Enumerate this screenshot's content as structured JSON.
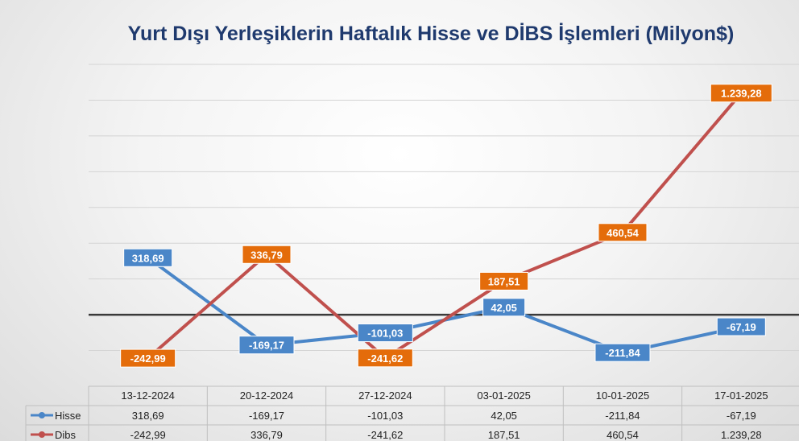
{
  "chart_data": {
    "type": "line",
    "title": "Yurt Dışı Yerleşiklerin Haftalık Hisse ve DİBS İşlemleri (Milyon$)",
    "categories": [
      "13-12-2024",
      "20-12-2024",
      "27-12-2024",
      "03-01-2025",
      "10-01-2025",
      "17-01-2025"
    ],
    "series": [
      {
        "name": "Hisse",
        "color": "#4a86c8",
        "label_color": "#4a86c8",
        "values": [
          318.69,
          -169.17,
          -101.03,
          42.05,
          -211.84,
          -67.19
        ],
        "labels": [
          "318,69",
          "-169,17",
          "-101,03",
          "42,05",
          "-211,84",
          "-67,19"
        ]
      },
      {
        "name": "Dibs",
        "color": "#c0504d",
        "label_color": "#e46c0a",
        "values": [
          -242.99,
          336.79,
          -241.62,
          187.51,
          460.54,
          1239.28
        ],
        "labels": [
          "-242,99",
          "336,79",
          "-241,62",
          "187,51",
          "460,54",
          "1.239,28"
        ]
      }
    ],
    "ylim": [
      -400,
      1400
    ],
    "grid": true,
    "legend": "data-table"
  }
}
